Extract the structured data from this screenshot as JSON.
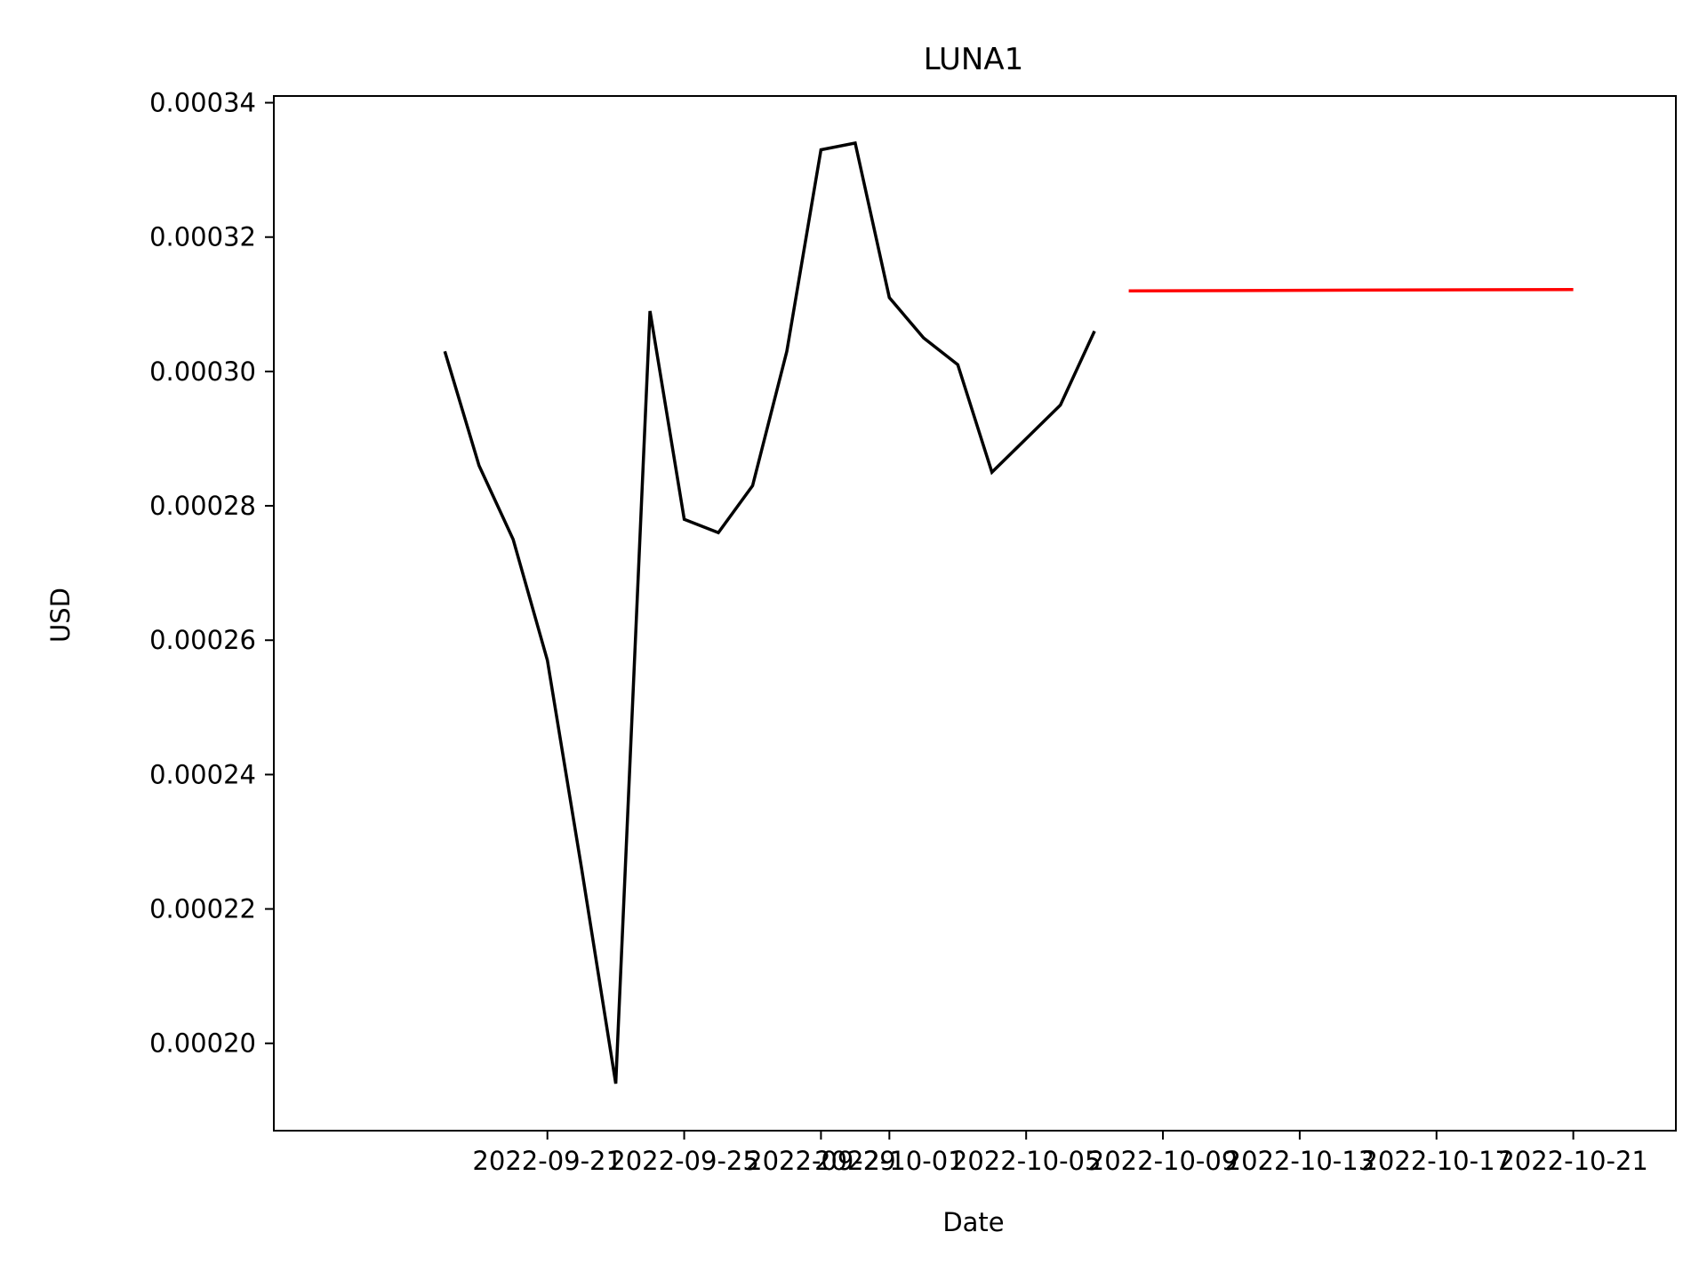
{
  "chart_data": {
    "type": "line",
    "title": "LUNA1",
    "xlabel": "Date",
    "ylabel": "USD",
    "x_axis_type": "date",
    "xlim": [
      "2022-09-13",
      "2022-10-24"
    ],
    "ylim": [
      0.000187,
      0.000341
    ],
    "x_ticks": [
      "2022-09-21",
      "2022-09-25",
      "2022-09-29",
      "2022-10-01",
      "2022-10-05",
      "2022-10-09",
      "2022-10-13",
      "2022-10-17",
      "2022-10-21"
    ],
    "y_ticks": [
      0.0002,
      0.00022,
      0.00024,
      0.00026,
      0.00028,
      0.0003,
      0.00032,
      0.00034
    ],
    "y_tick_labels": [
      "0.00020",
      "0.00022",
      "0.00024",
      "0.00026",
      "0.00028",
      "0.00030",
      "0.00032",
      "0.00034"
    ],
    "grid": false,
    "legend": "none",
    "series": [
      {
        "color": "#000000",
        "points": [
          {
            "x": "2022-09-18",
            "y": 0.000303
          },
          {
            "x": "2022-09-19",
            "y": 0.000286
          },
          {
            "x": "2022-09-20",
            "y": 0.000275
          },
          {
            "x": "2022-09-21",
            "y": 0.000257
          },
          {
            "x": "2022-09-22",
            "y": 0.000226
          },
          {
            "x": "2022-09-23",
            "y": 0.000194
          },
          {
            "x": "2022-09-24",
            "y": 0.000309
          },
          {
            "x": "2022-09-25",
            "y": 0.000278
          },
          {
            "x": "2022-09-26",
            "y": 0.000276
          },
          {
            "x": "2022-09-27",
            "y": 0.000283
          },
          {
            "x": "2022-09-28",
            "y": 0.000303
          },
          {
            "x": "2022-09-29",
            "y": 0.000333
          },
          {
            "x": "2022-09-30",
            "y": 0.000334
          },
          {
            "x": "2022-10-01",
            "y": 0.000311
          },
          {
            "x": "2022-10-02",
            "y": 0.000305
          },
          {
            "x": "2022-10-03",
            "y": 0.000301
          },
          {
            "x": "2022-10-04",
            "y": 0.000285
          },
          {
            "x": "2022-10-05",
            "y": 0.00029
          },
          {
            "x": "2022-10-06",
            "y": 0.000295
          },
          {
            "x": "2022-10-07",
            "y": 0.000306
          }
        ]
      },
      {
        "color": "#ff0000",
        "points": [
          {
            "x": "2022-10-08",
            "y": 0.000312
          },
          {
            "x": "2022-10-21",
            "y": 0.0003122
          }
        ]
      }
    ]
  }
}
